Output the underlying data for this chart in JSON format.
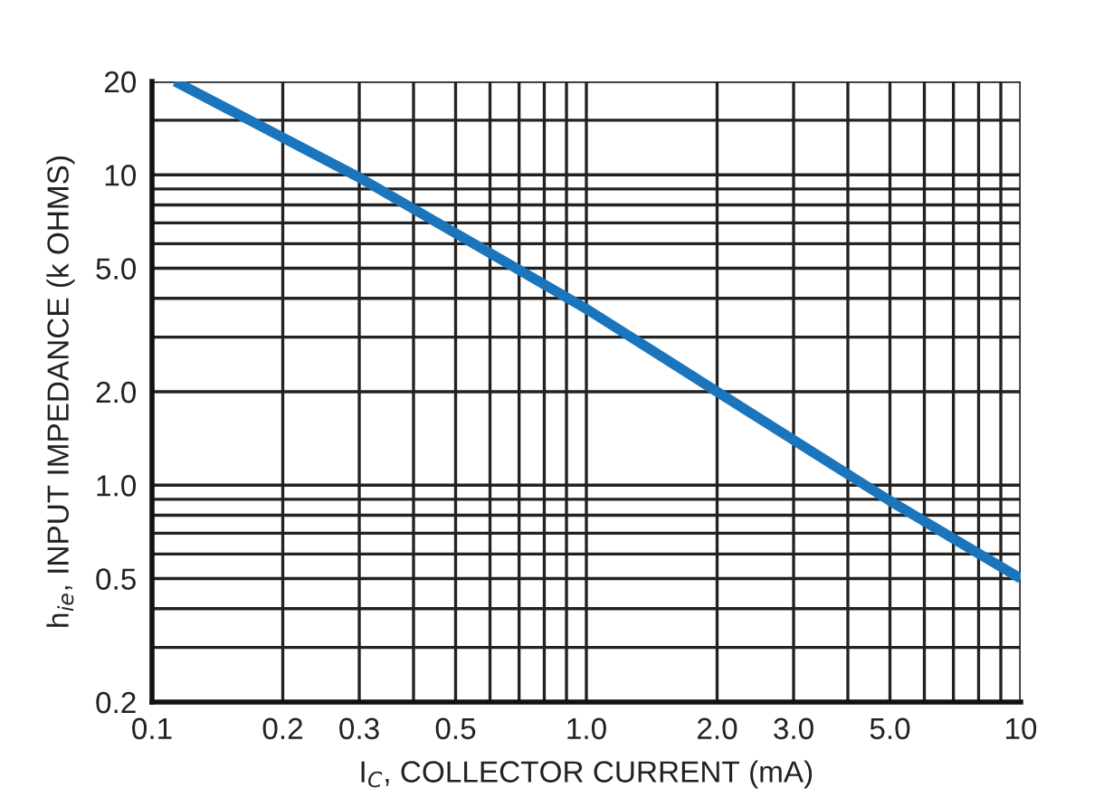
{
  "chart_data": {
    "type": "line",
    "xlabel": "I$_{C}$, COLLECTOR CURRENT (mA)",
    "ylabel": "h$_{ie}$, INPUT IMPEDANCE (k OHMS)",
    "log": "xy",
    "grid": true,
    "marker": "none",
    "line_style": "solid",
    "x": [
      0.113,
      0.3,
      1,
      2,
      5,
      10
    ],
    "series": [
      {
        "color": "#1a75bc",
        "values": [
          20,
          9.8,
          3.7,
          2.0,
          0.89,
          0.5
        ]
      }
    ],
    "xlim": [
      0.1,
      10
    ],
    "ylim": [
      0.2,
      20
    ],
    "xticks": [
      0.1,
      0.2,
      0.3,
      {
        "value": 0.4,
        "label": null
      },
      0.5,
      {
        "value": 0.6,
        "label": null
      },
      {
        "value": 0.7,
        "label": null
      },
      {
        "value": 0.8,
        "label": null
      },
      {
        "value": 0.9,
        "label": null
      },
      {
        "value": 1,
        "label": "1.0"
      },
      {
        "value": 2,
        "label": "2.0"
      },
      {
        "value": 3,
        "label": "3.0"
      },
      {
        "value": 4,
        "label": null
      },
      {
        "value": 5,
        "label": "5.0"
      },
      {
        "value": 6,
        "label": null
      },
      {
        "value": 7,
        "label": null
      },
      {
        "value": 8,
        "label": null
      },
      {
        "value": 9,
        "label": null
      },
      10
    ],
    "yticks": [
      0.2,
      {
        "value": 0.3,
        "label": null
      },
      {
        "value": 0.4,
        "label": null
      },
      0.5,
      {
        "value": 0.6,
        "label": null
      },
      {
        "value": 0.7,
        "label": null
      },
      {
        "value": 0.8,
        "label": null
      },
      {
        "value": 0.9,
        "label": null
      },
      {
        "value": 1,
        "label": "1.0"
      },
      {
        "value": 2,
        "label": "2.0"
      },
      {
        "value": 3,
        "label": null
      },
      {
        "value": 4,
        "label": null
      },
      {
        "value": 5,
        "label": "5.0"
      },
      {
        "value": 6,
        "label": null
      },
      {
        "value": 7,
        "label": null
      },
      {
        "value": 8,
        "label": null
      },
      {
        "value": 9,
        "label": null
      },
      10,
      {
        "value": 15,
        "label": null
      },
      20
    ]
  }
}
